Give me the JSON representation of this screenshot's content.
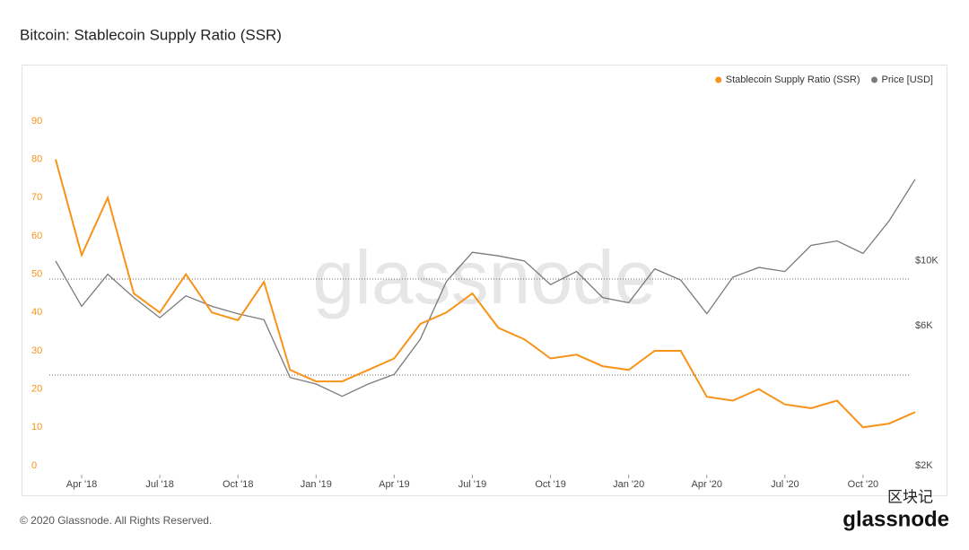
{
  "chart_data": {
    "type": "line",
    "title": "Bitcoin: Stablecoin Supply Ratio (SSR)",
    "watermark": "glassnode",
    "footer": "© 2020 Glassnode. All Rights Reserved.",
    "brand": {
      "cn": "区块记",
      "name": "glassnode"
    },
    "x": [
      "2018-03",
      "2018-04",
      "2018-05",
      "2018-06",
      "2018-07",
      "2018-08",
      "2018-09",
      "2018-10",
      "2018-11",
      "2018-12",
      "2019-01",
      "2019-02",
      "2019-03",
      "2019-04",
      "2019-05",
      "2019-06",
      "2019-07",
      "2019-08",
      "2019-09",
      "2019-10",
      "2019-11",
      "2019-12",
      "2020-01",
      "2020-02",
      "2020-03",
      "2020-04",
      "2020-05",
      "2020-06",
      "2020-07",
      "2020-08",
      "2020-09",
      "2020-10",
      "2020-11",
      "2020-12"
    ],
    "xlim": [
      "2018-03",
      "2020-12"
    ],
    "xticks": [
      {
        "value": "2018-04",
        "label": "Apr '18"
      },
      {
        "value": "2018-07",
        "label": "Jul '18"
      },
      {
        "value": "2018-10",
        "label": "Oct '18"
      },
      {
        "value": "2019-01",
        "label": "Jan '19"
      },
      {
        "value": "2019-04",
        "label": "Apr '19"
      },
      {
        "value": "2019-07",
        "label": "Jul '19"
      },
      {
        "value": "2019-10",
        "label": "Oct '19"
      },
      {
        "value": "2020-01",
        "label": "Jan '20"
      },
      {
        "value": "2020-04",
        "label": "Apr '20"
      },
      {
        "value": "2020-07",
        "label": "Jul '20"
      },
      {
        "value": "2020-10",
        "label": "Oct '20"
      }
    ],
    "ylim": [
      0,
      90
    ],
    "yticks": [
      0,
      10,
      20,
      30,
      40,
      50,
      60,
      70,
      80,
      90
    ],
    "y2lim": [
      2000,
      30000
    ],
    "y2scale": "log",
    "y2ticks": [
      {
        "value": 2000,
        "label": "$2K"
      },
      {
        "value": 6000,
        "label": "$6K"
      },
      {
        "value": 10000,
        "label": "$10K"
      }
    ],
    "legend": "top-right",
    "series": [
      {
        "name": "Stablecoin Supply Ratio (SSR)",
        "color": "#f7931a",
        "values": [
          80,
          55,
          70,
          45,
          40,
          50,
          40,
          38,
          48,
          25,
          22,
          22,
          25,
          28,
          37,
          40,
          45,
          36,
          33,
          28,
          29,
          26,
          25,
          30,
          30,
          18,
          17,
          20,
          16,
          15,
          17,
          10,
          11,
          14
        ]
      },
      {
        "name": "Price [USD]",
        "color": "#7a7a7a",
        "axis": "y2",
        "values": [
          10000,
          7000,
          9000,
          7500,
          6400,
          7600,
          7000,
          6600,
          6300,
          4000,
          3800,
          3450,
          3800,
          4100,
          5400,
          8500,
          10700,
          10400,
          10000,
          8300,
          9200,
          7500,
          7200,
          9400,
          8600,
          6600,
          8800,
          9500,
          9200,
          11300,
          11700,
          10600,
          13700,
          19000
        ]
      }
    ]
  }
}
